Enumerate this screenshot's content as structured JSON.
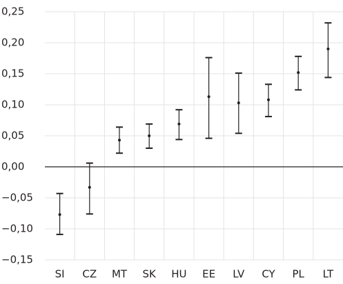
{
  "chart_data": {
    "type": "errorbar",
    "categories": [
      "SI",
      "CZ",
      "MT",
      "SK",
      "HU",
      "EE",
      "LV",
      "CY",
      "PL",
      "LT"
    ],
    "values": [
      -0.077,
      -0.033,
      0.043,
      0.05,
      0.069,
      0.113,
      0.103,
      0.108,
      0.152,
      0.19
    ],
    "lower": [
      -0.109,
      -0.076,
      0.022,
      0.03,
      0.044,
      0.046,
      0.054,
      0.081,
      0.124,
      0.144
    ],
    "upper": [
      -0.043,
      0.006,
      0.064,
      0.069,
      0.092,
      0.176,
      0.151,
      0.133,
      0.178,
      0.232
    ],
    "color": "#231f20",
    "ylim": [
      -0.15,
      0.25
    ],
    "yticks": [
      {
        "value": -0.15,
        "label": "−0,15"
      },
      {
        "value": -0.1,
        "label": "−0,10"
      },
      {
        "value": -0.05,
        "label": "−0,05"
      },
      {
        "value": 0,
        "label": "0,00"
      },
      {
        "value": 0.05,
        "label": "0,05"
      },
      {
        "value": 0.1,
        "label": "0,10"
      },
      {
        "value": 0.15,
        "label": "0,15"
      },
      {
        "value": 0.2,
        "label": "0,20"
      },
      {
        "value": 0.25,
        "label": "0,25"
      }
    ],
    "grid": true
  }
}
